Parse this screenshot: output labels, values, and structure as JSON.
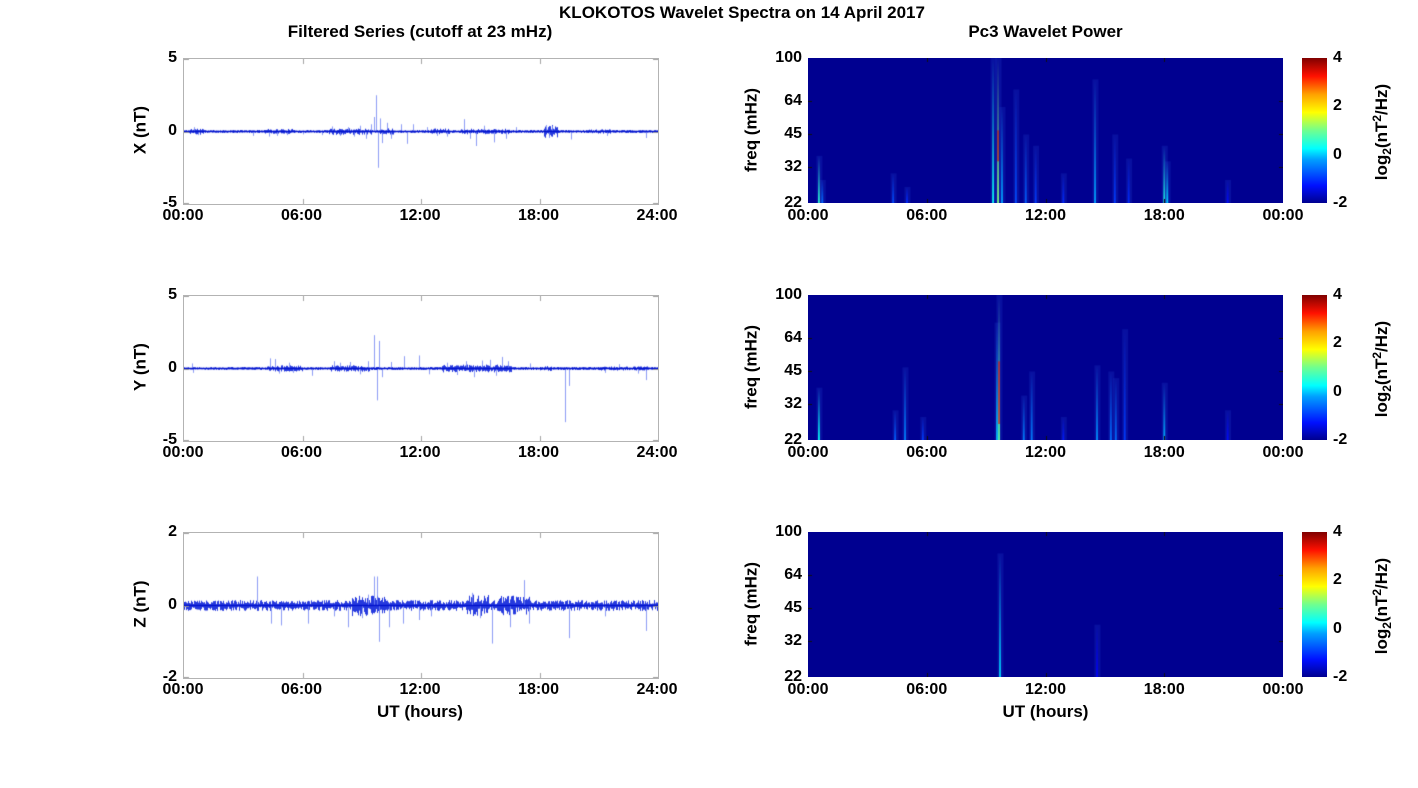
{
  "figure": {
    "main_title": "KLOKOTOS Wavelet Spectra on 14 April 2017",
    "left_column_title": "Filtered Series (cutoff at 23 mHz)",
    "right_column_title": "Pc3 Wavelet Power",
    "x_axis_label": "UT (hours)",
    "freq_axis_label": "freq (mHz)",
    "ylabel_x": "X (nT)",
    "ylabel_y": "Y (nT)",
    "ylabel_z": "Z (nT)",
    "colorbar_label": {
      "prefix": "log",
      "sub": "2",
      "mid": "(nT",
      "sup": "2",
      "suffix": "/Hz)"
    },
    "colors": {
      "series_line": "#0018d8",
      "series_spike": "#7284f2",
      "series_zero_line": "#0011cc",
      "spectrogram_background": "#000090",
      "frame_gray": "#b3b3b3"
    }
  },
  "chart_data": [
    {
      "id": "x_series",
      "type": "line",
      "title": "Filtered Series (cutoff at 23 mHz)",
      "ylabel": "X (nT)",
      "xlabel": "",
      "yscale": "linear",
      "ylim": [
        -5,
        5
      ],
      "yticks": [
        5,
        0,
        -5
      ],
      "xlim_hours": [
        0,
        24
      ],
      "xticks": [
        {
          "label": "00:00",
          "h": 0
        },
        {
          "label": "06:00",
          "h": 6
        },
        {
          "label": "12:00",
          "h": 12
        },
        {
          "label": "18:00",
          "h": 18
        },
        {
          "label": "24:00",
          "h": 24
        }
      ],
      "seed": 11,
      "noise_amp_nT": 0.07,
      "clusters": [
        [
          0.3,
          1.0,
          0.15
        ],
        [
          4.0,
          5.5,
          0.12
        ],
        [
          7.3,
          9.5,
          0.16
        ],
        [
          9.9,
          10.6,
          0.15
        ],
        [
          12.5,
          13.5,
          0.14
        ],
        [
          14.0,
          16.5,
          0.13
        ],
        [
          18.2,
          18.9,
          0.3
        ],
        [
          20.5,
          21.6,
          0.1
        ]
      ],
      "spikes_t_amp": [
        [
          0.5,
          0.3
        ],
        [
          0.7,
          -0.25
        ],
        [
          3.5,
          -0.3
        ],
        [
          4.3,
          -0.35
        ],
        [
          4.7,
          -0.3
        ],
        [
          5.2,
          -0.25
        ],
        [
          6.0,
          -0.2
        ],
        [
          7.0,
          -0.25
        ],
        [
          7.5,
          0.35
        ],
        [
          7.9,
          -0.3
        ],
        [
          8.3,
          0.3
        ],
        [
          8.6,
          -0.35
        ],
        [
          8.9,
          0.4
        ],
        [
          9.2,
          -0.5
        ],
        [
          9.45,
          0.5
        ],
        [
          9.6,
          1.0
        ],
        [
          9.7,
          2.5
        ],
        [
          9.8,
          -2.5
        ],
        [
          9.9,
          0.9
        ],
        [
          10.0,
          -0.8
        ],
        [
          10.3,
          0.6
        ],
        [
          10.5,
          -0.5
        ],
        [
          11.0,
          0.5
        ],
        [
          11.3,
          -0.85
        ],
        [
          11.6,
          0.5
        ],
        [
          12.3,
          0.3
        ],
        [
          12.8,
          -0.3
        ],
        [
          13.3,
          -0.35
        ],
        [
          14.2,
          0.85
        ],
        [
          14.5,
          -0.5
        ],
        [
          14.8,
          -1.0
        ],
        [
          15.2,
          0.4
        ],
        [
          15.7,
          -0.75
        ],
        [
          16.3,
          -0.5
        ],
        [
          16.8,
          0.3
        ],
        [
          18.35,
          0.45
        ],
        [
          18.5,
          -0.45
        ],
        [
          18.65,
          0.4
        ],
        [
          19.6,
          -0.55
        ],
        [
          21.4,
          -0.3
        ],
        [
          23.4,
          -0.45
        ]
      ]
    },
    {
      "id": "x_wavelet",
      "type": "heatmap",
      "title": "Pc3 Wavelet Power",
      "ylabel": "freq (mHz)",
      "xlabel": "",
      "yscale": "log",
      "ylim": [
        22,
        100
      ],
      "yticks": [
        100,
        64,
        45,
        32,
        22
      ],
      "xlim_hours": [
        0,
        24
      ],
      "xticks": [
        {
          "label": "00:00",
          "h": 0
        },
        {
          "label": "06:00",
          "h": 6
        },
        {
          "label": "12:00",
          "h": 12
        },
        {
          "label": "18:00",
          "h": 18
        },
        {
          "label": "00:00",
          "h": 24
        }
      ],
      "background_log2_power": -2,
      "colorbar": {
        "range": [
          -2,
          4
        ],
        "ticks": [
          4,
          2,
          0,
          -2
        ],
        "colormap": "jet",
        "stops": [
          {
            "frac": 0,
            "color": "#00008f"
          },
          {
            "frac": 0.12,
            "color": "#0010ff"
          },
          {
            "frac": 0.3,
            "color": "#00a0ff"
          },
          {
            "frac": 0.375,
            "color": "#00ffff"
          },
          {
            "frac": 0.5,
            "color": "#70ff8f"
          },
          {
            "frac": 0.625,
            "color": "#ffff00"
          },
          {
            "frac": 0.75,
            "color": "#ffa000"
          },
          {
            "frac": 0.875,
            "color": "#ff1000"
          },
          {
            "frac": 1,
            "color": "#800000"
          }
        ]
      },
      "streaks": [
        {
          "t": 0.55,
          "fmax": 36,
          "peak": 0.5
        },
        {
          "t": 0.72,
          "fmax": 28,
          "peak": -0.6
        },
        {
          "t": 4.3,
          "fmax": 30,
          "peak": -0.8
        },
        {
          "t": 5.0,
          "fmax": 26,
          "peak": -1.0
        },
        {
          "t": 9.35,
          "fmax": 100,
          "peak": 0.3
        },
        {
          "t": 9.6,
          "fmax": 100,
          "peak": 1.0,
          "core": [
            34,
            47
          ],
          "core_power": 3.5
        },
        {
          "t": 9.8,
          "fmax": 60,
          "peak": -0.3
        },
        {
          "t": 10.5,
          "fmax": 72,
          "peak": -0.8
        },
        {
          "t": 11.0,
          "fmax": 45,
          "peak": -0.7
        },
        {
          "t": 11.5,
          "fmax": 40,
          "peak": -0.9
        },
        {
          "t": 12.9,
          "fmax": 30,
          "peak": -1.0
        },
        {
          "t": 14.5,
          "fmax": 80,
          "peak": -0.3
        },
        {
          "t": 15.5,
          "fmax": 45,
          "peak": -0.9
        },
        {
          "t": 16.2,
          "fmax": 35,
          "peak": -1.0
        },
        {
          "t": 18.0,
          "fmax": 40,
          "peak": 0.4
        },
        {
          "t": 18.15,
          "fmax": 34,
          "peak": 0.0
        },
        {
          "t": 21.2,
          "fmax": 28,
          "peak": -1.2
        }
      ]
    },
    {
      "id": "y_series",
      "type": "line",
      "title": "",
      "ylabel": "Y (nT)",
      "xlabel": "",
      "yscale": "linear",
      "ylim": [
        -5,
        5
      ],
      "yticks": [
        5,
        0,
        -5
      ],
      "xlim_hours": [
        0,
        24
      ],
      "xticks": [
        {
          "label": "00:00",
          "h": 0
        },
        {
          "label": "06:00",
          "h": 6
        },
        {
          "label": "12:00",
          "h": 12
        },
        {
          "label": "18:00",
          "h": 18
        },
        {
          "label": "24:00",
          "h": 24
        }
      ],
      "seed": 22,
      "noise_amp_nT": 0.07,
      "clusters": [
        [
          4.2,
          6.0,
          0.15
        ],
        [
          7.4,
          9.4,
          0.15
        ],
        [
          13.0,
          16.6,
          0.18
        ],
        [
          18.0,
          18.6,
          0.12
        ],
        [
          21.0,
          23.5,
          0.1
        ]
      ],
      "spikes_t_amp": [
        [
          0.4,
          0.35
        ],
        [
          0.45,
          -0.3
        ],
        [
          4.35,
          0.7
        ],
        [
          4.6,
          0.65
        ],
        [
          4.8,
          -0.35
        ],
        [
          5.3,
          0.4
        ],
        [
          5.5,
          -0.3
        ],
        [
          6.5,
          -0.5
        ],
        [
          7.6,
          0.5
        ],
        [
          7.9,
          0.4
        ],
        [
          8.4,
          0.45
        ],
        [
          8.9,
          -0.4
        ],
        [
          9.3,
          0.5
        ],
        [
          9.6,
          2.3
        ],
        [
          9.75,
          -2.2
        ],
        [
          9.85,
          1.9
        ],
        [
          10.0,
          -0.6
        ],
        [
          10.5,
          0.45
        ],
        [
          11.15,
          0.85
        ],
        [
          11.9,
          0.9
        ],
        [
          12.4,
          -0.4
        ],
        [
          13.3,
          0.4
        ],
        [
          13.8,
          -0.45
        ],
        [
          14.3,
          0.5
        ],
        [
          14.7,
          -0.6
        ],
        [
          15.1,
          0.55
        ],
        [
          15.5,
          0.6
        ],
        [
          15.8,
          -0.5
        ],
        [
          16.1,
          0.8
        ],
        [
          16.4,
          0.5
        ],
        [
          17.5,
          0.35
        ],
        [
          19.3,
          -3.7
        ],
        [
          19.5,
          -1.2
        ],
        [
          21.3,
          -0.3
        ],
        [
          22.0,
          0.3
        ],
        [
          23.0,
          -0.35
        ],
        [
          23.4,
          -0.8
        ]
      ]
    },
    {
      "id": "y_wavelet",
      "type": "heatmap",
      "title": "",
      "ylabel": "freq (mHz)",
      "xlabel": "",
      "yscale": "log",
      "ylim": [
        22,
        100
      ],
      "yticks": [
        100,
        64,
        45,
        32,
        22
      ],
      "xlim_hours": [
        0,
        24
      ],
      "xticks": [
        {
          "label": "00:00",
          "h": 0
        },
        {
          "label": "06:00",
          "h": 6
        },
        {
          "label": "12:00",
          "h": 12
        },
        {
          "label": "18:00",
          "h": 18
        },
        {
          "label": "00:00",
          "h": 24
        }
      ],
      "background_log2_power": -2,
      "colorbar": {
        "range": [
          -2,
          4
        ],
        "ticks": [
          4,
          2,
          0,
          -2
        ],
        "colormap": "jet",
        "stops": [
          {
            "frac": 0,
            "color": "#00008f"
          },
          {
            "frac": 0.12,
            "color": "#0010ff"
          },
          {
            "frac": 0.3,
            "color": "#00a0ff"
          },
          {
            "frac": 0.375,
            "color": "#00ffff"
          },
          {
            "frac": 0.5,
            "color": "#70ff8f"
          },
          {
            "frac": 0.625,
            "color": "#ffff00"
          },
          {
            "frac": 0.75,
            "color": "#ffa000"
          },
          {
            "frac": 0.875,
            "color": "#ff1000"
          },
          {
            "frac": 1,
            "color": "#800000"
          }
        ]
      },
      "streaks": [
        {
          "t": 0.55,
          "fmax": 38,
          "peak": 0.3
        },
        {
          "t": 4.4,
          "fmax": 30,
          "peak": -0.7
        },
        {
          "t": 4.9,
          "fmax": 47,
          "peak": -0.5
        },
        {
          "t": 5.8,
          "fmax": 28,
          "peak": -0.9
        },
        {
          "t": 9.55,
          "fmax": 75,
          "peak": 0.0
        },
        {
          "t": 9.65,
          "fmax": 100,
          "peak": 0.8,
          "core": [
            26,
            50
          ],
          "core_power": 3.3
        },
        {
          "t": 10.9,
          "fmax": 35,
          "peak": -0.5
        },
        {
          "t": 11.3,
          "fmax": 45,
          "peak": -0.5
        },
        {
          "t": 12.9,
          "fmax": 28,
          "peak": -1.1
        },
        {
          "t": 14.6,
          "fmax": 48,
          "peak": -0.4
        },
        {
          "t": 15.3,
          "fmax": 45,
          "peak": -0.6
        },
        {
          "t": 15.55,
          "fmax": 42,
          "peak": -0.6
        },
        {
          "t": 16.0,
          "fmax": 70,
          "peak": -0.9
        },
        {
          "t": 18.0,
          "fmax": 40,
          "peak": -0.2
        },
        {
          "t": 21.2,
          "fmax": 30,
          "peak": -1.2
        }
      ]
    },
    {
      "id": "z_series",
      "type": "line",
      "title": "",
      "ylabel": "Z (nT)",
      "xlabel": "UT (hours)",
      "yscale": "linear",
      "ylim": [
        -2,
        2
      ],
      "yticks": [
        2,
        0,
        -2
      ],
      "xlim_hours": [
        0,
        24
      ],
      "xticks": [
        {
          "label": "00:00",
          "h": 0
        },
        {
          "label": "06:00",
          "h": 6
        },
        {
          "label": "12:00",
          "h": 12
        },
        {
          "label": "18:00",
          "h": 18
        },
        {
          "label": "24:00",
          "h": 24
        }
      ],
      "seed": 33,
      "noise_amp_nT": 0.1,
      "clusters": [
        [
          8.5,
          9.3,
          0.2
        ],
        [
          9.4,
          10.2,
          0.18
        ],
        [
          14.3,
          15.4,
          0.2
        ],
        [
          15.8,
          17.5,
          0.18
        ]
      ],
      "spikes_t_amp": [
        [
          3.7,
          0.8
        ],
        [
          4.4,
          -0.5
        ],
        [
          4.9,
          -0.55
        ],
        [
          6.3,
          -0.5
        ],
        [
          7.6,
          -0.3
        ],
        [
          8.3,
          -0.6
        ],
        [
          9.0,
          -0.35
        ],
        [
          9.3,
          0.3
        ],
        [
          9.6,
          0.8
        ],
        [
          9.75,
          0.8
        ],
        [
          9.85,
          -1.0
        ],
        [
          10.4,
          -0.6
        ],
        [
          11.1,
          -0.5
        ],
        [
          11.9,
          -0.4
        ],
        [
          12.5,
          -0.3
        ],
        [
          14.6,
          0.35
        ],
        [
          15.0,
          -0.35
        ],
        [
          15.6,
          -1.05
        ],
        [
          16.5,
          -0.6
        ],
        [
          17.2,
          0.7
        ],
        [
          17.45,
          -0.5
        ],
        [
          19.5,
          -0.9
        ],
        [
          21.3,
          -0.3
        ],
        [
          23.4,
          -0.7
        ]
      ]
    },
    {
      "id": "z_wavelet",
      "type": "heatmap",
      "title": "",
      "ylabel": "freq (mHz)",
      "xlabel": "UT (hours)",
      "yscale": "log",
      "ylim": [
        22,
        100
      ],
      "yticks": [
        100,
        64,
        45,
        32,
        22
      ],
      "xlim_hours": [
        0,
        24
      ],
      "xticks": [
        {
          "label": "00:00",
          "h": 0
        },
        {
          "label": "06:00",
          "h": 6
        },
        {
          "label": "12:00",
          "h": 12
        },
        {
          "label": "18:00",
          "h": 18
        },
        {
          "label": "00:00",
          "h": 24
        }
      ],
      "background_log2_power": -2,
      "colorbar": {
        "range": [
          -2,
          4
        ],
        "ticks": [
          4,
          2,
          0,
          -2
        ],
        "colormap": "jet",
        "stops": [
          {
            "frac": 0,
            "color": "#00008f"
          },
          {
            "frac": 0.12,
            "color": "#0010ff"
          },
          {
            "frac": 0.3,
            "color": "#00a0ff"
          },
          {
            "frac": 0.375,
            "color": "#00ffff"
          },
          {
            "frac": 0.5,
            "color": "#70ff8f"
          },
          {
            "frac": 0.625,
            "color": "#ffff00"
          },
          {
            "frac": 0.75,
            "color": "#ffa000"
          },
          {
            "frac": 0.875,
            "color": "#ff1000"
          },
          {
            "frac": 1,
            "color": "#800000"
          }
        ]
      },
      "streaks": [
        {
          "t": 9.7,
          "fmax": 80,
          "peak": 0.0
        },
        {
          "t": 14.6,
          "fmax": 38,
          "peak": -1.3
        }
      ]
    }
  ]
}
